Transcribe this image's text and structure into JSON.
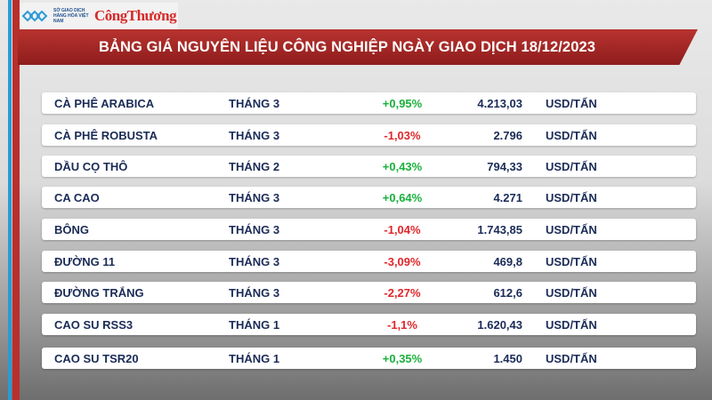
{
  "header": {
    "logo_left": "SỞ GIAO DỊCH HÀNG HÓA VIỆT NAM",
    "logo_right": "CôngThương",
    "title": "BẢNG GIÁ NGUYÊN LIỆU CÔNG NGHIỆP NGÀY GIAO DỊCH 18/12/2023"
  },
  "colors": {
    "up": "#19b13b",
    "down": "#e0262a",
    "banner": "#a82927",
    "text": "#1a2b57"
  },
  "rows": [
    {
      "name": "CÀ PHÊ ARABICA",
      "month": "THÁNG 3",
      "change": "+0,95%",
      "dir": "up",
      "price": "4.213,03",
      "unit": "USD/TẤN"
    },
    {
      "name": "CÀ PHÊ ROBUSTA",
      "month": "THÁNG 3",
      "change": "-1,03%",
      "dir": "down",
      "price": "2.796",
      "unit": "USD/TẤN"
    },
    {
      "name": "DẦU CỌ THÔ",
      "month": "THÁNG 2",
      "change": "+0,43%",
      "dir": "up",
      "price": "794,33",
      "unit": "USD/TẤN"
    },
    {
      "name": "CA CAO",
      "month": "THÁNG 3",
      "change": "+0,64%",
      "dir": "up",
      "price": "4.271",
      "unit": "USD/TẤN"
    },
    {
      "name": "BÔNG",
      "month": "THÁNG 3",
      "change": "-1,04%",
      "dir": "down",
      "price": "1.743,85",
      "unit": "USD/TẤN"
    },
    {
      "name": "ĐƯỜNG 11",
      "month": "THÁNG 3",
      "change": "-3,09%",
      "dir": "down",
      "price": "469,8",
      "unit": "USD/TẤN"
    },
    {
      "name": "ĐƯỜNG TRẮNG",
      "month": "THÁNG 3",
      "change": "-2,27%",
      "dir": "down",
      "price": "612,6",
      "unit": "USD/TẤN"
    },
    {
      "name": "CAO SU RSS3",
      "month": "THÁNG 1",
      "change": "-1,1%",
      "dir": "down",
      "price": "1.620,43",
      "unit": "USD/TẤN"
    },
    {
      "name": "CAO SU TSR20",
      "month": "THÁNG 1",
      "change": "+0,35%",
      "dir": "up",
      "price": "1.450",
      "unit": "USD/TẤN"
    }
  ]
}
